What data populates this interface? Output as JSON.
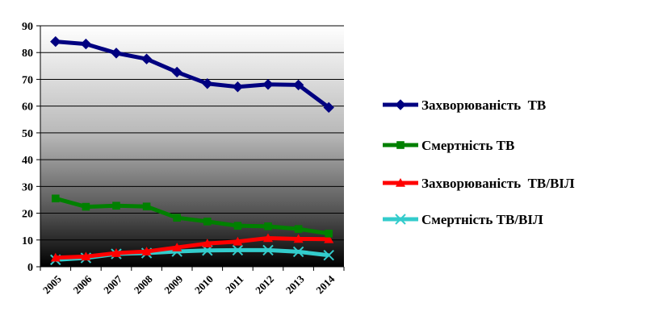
{
  "chart_data": {
    "type": "line",
    "title": "",
    "xlabel": "",
    "ylabel": "",
    "ylim": [
      0,
      90
    ],
    "yticks": [
      0,
      10,
      20,
      30,
      40,
      50,
      60,
      70,
      80,
      90
    ],
    "x": [
      "2005",
      "2006",
      "2007",
      "2008",
      "2009",
      "2010",
      "2011",
      "2012",
      "2013",
      "2014"
    ],
    "grid": "horizontal",
    "background": "gradient-white-to-black",
    "legend_position": "right",
    "series": [
      {
        "name": "Захворюваність  ТВ",
        "color": "#000080",
        "marker": "diamond",
        "values": [
          84.1,
          83.2,
          79.8,
          77.6,
          72.7,
          68.4,
          67.2,
          68.1,
          67.9,
          59.5
        ]
      },
      {
        "name": "Смертність ТВ",
        "color": "#008000",
        "marker": "square",
        "values": [
          25.5,
          22.4,
          22.8,
          22.5,
          18.3,
          16.9,
          15.3,
          15.1,
          14.1,
          12.4
        ]
      },
      {
        "name": "Захворюваність  ТВ/ВІЛ",
        "color": "#ff0000",
        "marker": "triangle",
        "values": [
          3.4,
          3.8,
          5.1,
          5.7,
          7.2,
          8.7,
          9.4,
          10.7,
          10.4,
          10.3
        ]
      },
      {
        "name": "Смертність ТВ/ВІЛ",
        "color": "#33cccc",
        "marker": "x",
        "values": [
          2.6,
          3.3,
          4.8,
          5.1,
          5.7,
          6.1,
          6.2,
          6.2,
          5.6,
          4.3
        ]
      }
    ]
  }
}
